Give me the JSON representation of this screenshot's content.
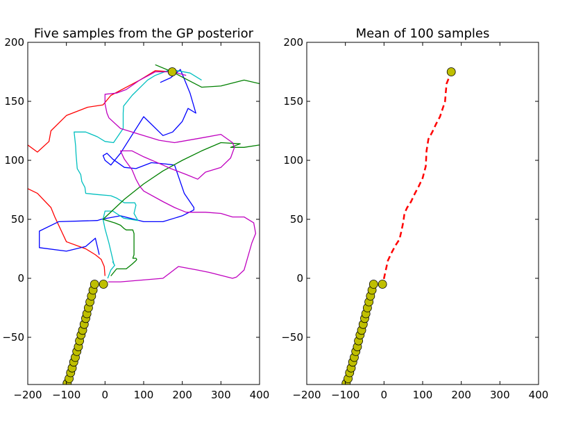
{
  "chart_data": [
    {
      "type": "line",
      "title": "Five samples from the GP posterior",
      "xlabel": "",
      "ylabel": "",
      "xlim": [
        -200,
        400
      ],
      "ylim": [
        -90,
        200
      ],
      "xticks": [
        -200,
        -100,
        0,
        100,
        200,
        300,
        400
      ],
      "yticks": [
        -50,
        0,
        50,
        100,
        150,
        200
      ],
      "xtick_labels": [
        "−200",
        "−100",
        "0",
        "100",
        "200",
        "300",
        "400"
      ],
      "ytick_labels": [
        "−50",
        "0",
        "50",
        "100",
        "150",
        "200"
      ],
      "grid": false,
      "observed": {
        "color": "#bfbf00",
        "points": [
          [
            -98,
            -89
          ],
          [
            -93,
            -85
          ],
          [
            -89,
            -80
          ],
          [
            -85,
            -76
          ],
          [
            -81,
            -71
          ],
          [
            -77,
            -67
          ],
          [
            -73,
            -62
          ],
          [
            -69,
            -58
          ],
          [
            -66,
            -53
          ],
          [
            -62,
            -48
          ],
          [
            -58,
            -44
          ],
          [
            -54,
            -39
          ],
          [
            -50,
            -34
          ],
          [
            -47,
            -30
          ],
          [
            -43,
            -25
          ],
          [
            -39,
            -20
          ],
          [
            -35,
            -15
          ],
          [
            -31,
            -10
          ],
          [
            -27,
            -5
          ],
          [
            -4,
            -5
          ]
        ]
      },
      "target": {
        "x": 174,
        "y": 175,
        "color": "#bfbf00"
      },
      "series": [
        {
          "color": "#ff0000",
          "points": [
            [
              0,
              2
            ],
            [
              -2,
              10
            ],
            [
              -10,
              16
            ],
            [
              -25,
              20
            ],
            [
              -50,
              25
            ],
            [
              -100,
              31
            ],
            [
              -110,
              38
            ],
            [
              -130,
              52
            ],
            [
              -140,
              60
            ],
            [
              -175,
              72
            ],
            [
              -200,
              76
            ]
          ]
        },
        {
          "color": "#ff0000",
          "points": [
            [
              -200,
              113
            ],
            [
              -175,
              107
            ],
            [
              -145,
              116
            ],
            [
              -140,
              125
            ],
            [
              -100,
              138
            ],
            [
              -45,
              145
            ],
            [
              -5,
              147
            ],
            [
              15,
              155
            ],
            [
              90,
              168
            ],
            [
              130,
              176
            ],
            [
              174,
              175
            ]
          ]
        },
        {
          "color": "#0000ff",
          "points": [
            [
              -15,
              20
            ],
            [
              -25,
              34
            ],
            [
              -50,
              27
            ],
            [
              -100,
              23
            ],
            [
              -170,
              26
            ],
            [
              -170,
              40
            ],
            [
              -120,
              48
            ],
            [
              -20,
              49
            ],
            [
              -10,
              50
            ],
            [
              40,
              53
            ],
            [
              100,
              48
            ],
            [
              150,
              48
            ],
            [
              200,
              53
            ],
            [
              230,
              58
            ],
            [
              230,
              60
            ],
            [
              205,
              72
            ],
            [
              180,
              96
            ],
            [
              155,
              97
            ],
            [
              120,
              98
            ],
            [
              80,
              93
            ],
            [
              50,
              94
            ],
            [
              20,
              101
            ],
            [
              5,
              106
            ],
            [
              -5,
              104
            ],
            [
              0,
              100
            ],
            [
              15,
              96
            ],
            [
              40,
              106
            ],
            [
              100,
              137
            ],
            [
              150,
              121
            ],
            [
              175,
              124
            ],
            [
              200,
              133
            ],
            [
              215,
              144
            ],
            [
              235,
              140
            ],
            [
              220,
              157
            ],
            [
              195,
              177
            ],
            [
              170,
              170
            ],
            [
              143,
              166
            ]
          ]
        },
        {
          "color": "#00bfbf",
          "points": [
            [
              7,
              0
            ],
            [
              15,
              7
            ],
            [
              25,
              11
            ],
            [
              20,
              14
            ],
            [
              23,
              12
            ],
            [
              10,
              30
            ],
            [
              0,
              42
            ],
            [
              -5,
              50
            ],
            [
              0,
              57
            ],
            [
              20,
              57
            ],
            [
              48,
              51
            ],
            [
              85,
              49
            ],
            [
              80,
              52
            ],
            [
              75,
              55
            ],
            [
              80,
              62
            ],
            [
              77,
              64
            ],
            [
              50,
              64
            ],
            [
              30,
              68
            ],
            [
              15,
              70
            ],
            [
              -20,
              71
            ],
            [
              -50,
              72
            ],
            [
              -52,
              77
            ],
            [
              -60,
              82
            ],
            [
              -63,
              88
            ],
            [
              -72,
              93
            ],
            [
              -75,
              105
            ],
            [
              -76,
              112
            ],
            [
              -80,
              124
            ],
            [
              -50,
              124
            ],
            [
              -20,
              120
            ],
            [
              0,
              116
            ],
            [
              22,
              115
            ],
            [
              47,
              127
            ],
            [
              47,
              140
            ],
            [
              48,
              146
            ],
            [
              70,
              155
            ],
            [
              110,
              168
            ],
            [
              130,
              172
            ],
            [
              170,
              177
            ],
            [
              220,
              174
            ],
            [
              250,
              168
            ]
          ]
        },
        {
          "color": "#008000",
          "points": [
            [
              15,
              2
            ],
            [
              30,
              8
            ],
            [
              55,
              8
            ],
            [
              70,
              12
            ],
            [
              80,
              15
            ],
            [
              82,
              16
            ],
            [
              80,
              17
            ],
            [
              72,
              17
            ],
            [
              75,
              20
            ],
            [
              75,
              38
            ],
            [
              72,
              41
            ],
            [
              55,
              41
            ],
            [
              50,
              42
            ],
            [
              40,
              45
            ],
            [
              25,
              47
            ],
            [
              -5,
              50
            ],
            [
              50,
              67
            ],
            [
              100,
              80
            ],
            [
              150,
              91
            ],
            [
              200,
              100
            ],
            [
              250,
              108
            ],
            [
              300,
              115
            ],
            [
              350,
              114
            ],
            [
              325,
              111
            ],
            [
              360,
              111
            ],
            [
              400,
              113
            ]
          ]
        },
        {
          "color": "#008000",
          "points": [
            [
              130,
              181
            ],
            [
              174,
              175
            ],
            [
              215,
              168
            ],
            [
              250,
              162
            ],
            [
              300,
              163
            ],
            [
              360,
              168
            ],
            [
              400,
              165
            ]
          ]
        },
        {
          "color": "#bf00bf",
          "points": [
            [
              8,
              -3
            ],
            [
              40,
              -3
            ],
            [
              150,
              0
            ],
            [
              170,
              5
            ],
            [
              190,
              10
            ],
            [
              240,
              7
            ],
            [
              270,
              5
            ],
            [
              330,
              0
            ],
            [
              340,
              1
            ],
            [
              360,
              7
            ],
            [
              380,
              30
            ],
            [
              390,
              38
            ],
            [
              385,
              47
            ],
            [
              360,
              52
            ],
            [
              345,
              52
            ],
            [
              330,
              52
            ],
            [
              300,
              55
            ],
            [
              260,
              56
            ],
            [
              210,
              56
            ],
            [
              180,
              60
            ],
            [
              150,
              65
            ],
            [
              100,
              74
            ],
            [
              90,
              78
            ],
            [
              80,
              84
            ],
            [
              70,
              92
            ],
            [
              50,
              101
            ],
            [
              40,
              108
            ],
            [
              70,
              108
            ],
            [
              100,
              103
            ],
            [
              150,
              96
            ],
            [
              170,
              93
            ],
            [
              210,
              88
            ],
            [
              240,
              84
            ],
            [
              260,
              90
            ],
            [
              300,
              94
            ],
            [
              325,
              102
            ],
            [
              335,
              111
            ],
            [
              330,
              115
            ],
            [
              300,
              122
            ],
            [
              250,
              119
            ],
            [
              180,
              115
            ],
            [
              140,
              117
            ],
            [
              90,
              122
            ],
            [
              60,
              125
            ],
            [
              40,
              127
            ],
            [
              10,
              136
            ],
            [
              5,
              140
            ],
            [
              0,
              148
            ],
            [
              0,
              156
            ],
            [
              30,
              157
            ],
            [
              55,
              160
            ],
            [
              90,
              168
            ],
            [
              130,
              175
            ],
            [
              175,
              175
            ],
            [
              210,
              172
            ]
          ]
        }
      ]
    },
    {
      "type": "line",
      "title": "Mean of 100 samples",
      "xlabel": "",
      "ylabel": "",
      "xlim": [
        -200,
        400
      ],
      "ylim": [
        -90,
        200
      ],
      "xticks": [
        -200,
        -100,
        0,
        100,
        200,
        300,
        400
      ],
      "yticks": [
        -50,
        0,
        50,
        100,
        150,
        200
      ],
      "xtick_labels": [
        "−200",
        "−100",
        "0",
        "100",
        "200",
        "300",
        "400"
      ],
      "ytick_labels": [
        "−50",
        "0",
        "50",
        "100",
        "150",
        "200"
      ],
      "grid": false,
      "observed": {
        "color": "#bfbf00",
        "points": [
          [
            -98,
            -89
          ],
          [
            -93,
            -85
          ],
          [
            -89,
            -80
          ],
          [
            -85,
            -76
          ],
          [
            -81,
            -71
          ],
          [
            -77,
            -67
          ],
          [
            -73,
            -62
          ],
          [
            -69,
            -58
          ],
          [
            -66,
            -53
          ],
          [
            -62,
            -48
          ],
          [
            -58,
            -44
          ],
          [
            -54,
            -39
          ],
          [
            -50,
            -34
          ],
          [
            -47,
            -30
          ],
          [
            -43,
            -25
          ],
          [
            -39,
            -20
          ],
          [
            -35,
            -15
          ],
          [
            -31,
            -10
          ],
          [
            -27,
            -5
          ],
          [
            -4,
            -5
          ]
        ]
      },
      "target": {
        "x": 174,
        "y": 175,
        "color": "#bfbf00"
      },
      "series": [
        {
          "color": "#ff0000",
          "dashed": true,
          "points": [
            [
              -5,
              -8
            ],
            [
              0,
              0
            ],
            [
              10,
              15
            ],
            [
              20,
              22
            ],
            [
              30,
              28
            ],
            [
              40,
              33
            ],
            [
              45,
              40
            ],
            [
              50,
              48
            ],
            [
              53,
              55
            ],
            [
              60,
              60
            ],
            [
              70,
              65
            ],
            [
              80,
              72
            ],
            [
              90,
              78
            ],
            [
              100,
              85
            ],
            [
              108,
              95
            ],
            [
              110,
              108
            ],
            [
              115,
              118
            ],
            [
              125,
              124
            ],
            [
              135,
              131
            ],
            [
              145,
              137
            ],
            [
              153,
              145
            ],
            [
              158,
              150
            ],
            [
              160,
              158
            ],
            [
              162,
              165
            ],
            [
              168,
              170
            ],
            [
              174,
              175
            ]
          ]
        }
      ]
    }
  ]
}
